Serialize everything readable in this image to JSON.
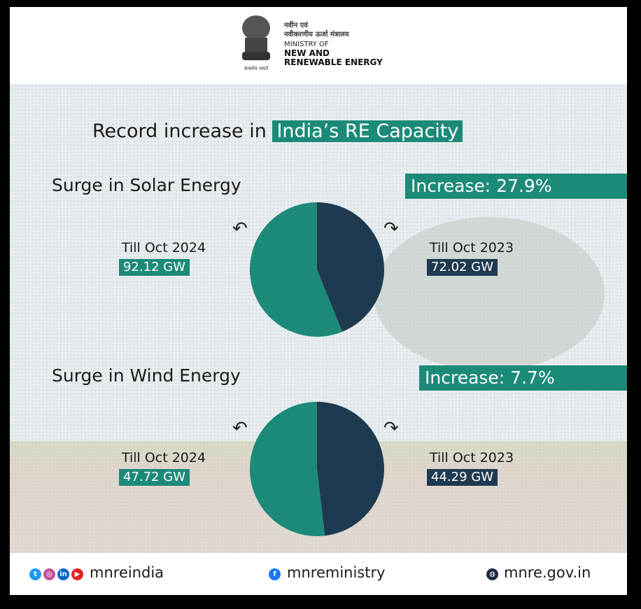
{
  "header": {
    "hindi_line1": "नवीन एवं",
    "hindi_line2": "नवीकरणीय ऊर्जा मंत्रालय",
    "line1": "MINISTRY OF",
    "line2": "NEW AND",
    "line3": "RENEWABLE ENERGY",
    "emblem_motto": "सत्यमेव जयते"
  },
  "title": {
    "prefix": "Record increase in",
    "highlight": "India’s RE Capacity"
  },
  "colors": {
    "teal": "#1c8a78",
    "navy": "#1e3a50"
  },
  "chart_data": [
    {
      "type": "pie",
      "title": "Surge in Solar Energy",
      "annotation": "Increase: 27.9%",
      "unit": "GW",
      "slices": [
        {
          "label": "Till Oct 2024",
          "value": 92.12,
          "display": "92.12 GW",
          "color": "#1c8a78"
        },
        {
          "label": "Till Oct 2023",
          "value": 72.02,
          "display": "72.02 GW",
          "color": "#1e3a50"
        }
      ]
    },
    {
      "type": "pie",
      "title": "Surge in Wind Energy",
      "annotation": "Increase: 7.7%",
      "unit": "GW",
      "slices": [
        {
          "label": "Till Oct 2024",
          "value": 47.72,
          "display": "47.72 GW",
          "color": "#1c8a78"
        },
        {
          "label": "Till Oct 2023",
          "value": 44.29,
          "display": "44.29 GW",
          "color": "#1e3a50"
        }
      ]
    }
  ],
  "footer": {
    "social_handle": "mnreindia",
    "facebook": "mnreministry",
    "website": "mnre.gov.in",
    "icons": [
      "twitter-icon",
      "instagram-icon",
      "linkedin-icon",
      "youtube-icon",
      "facebook-icon",
      "globe-icon"
    ]
  }
}
